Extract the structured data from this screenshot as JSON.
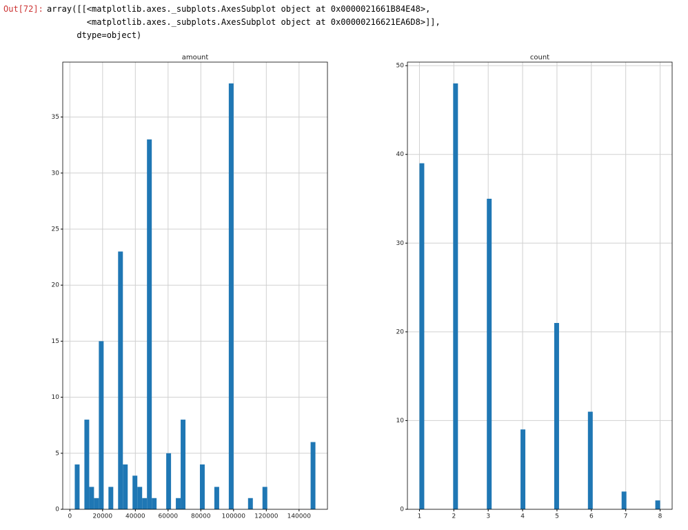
{
  "output": {
    "prompt": "Out[72]:",
    "lines": [
      "array([[<matplotlib.axes._subplots.AxesSubplot object at 0x0000021661B84E48>,",
      "        <matplotlib.axes._subplots.AxesSubplot object at 0x00000216621EA6D8>]],",
      "      dtype=object)"
    ]
  },
  "chart_data": [
    {
      "type": "histogram",
      "title": "amount",
      "color": "#1f77b4",
      "grid": true,
      "bins": [
        3000,
        5940,
        8880,
        11820,
        14760,
        17700,
        20640,
        23580,
        26520,
        29460,
        32400,
        35340,
        38280,
        41220,
        44160,
        47100,
        50040,
        52980,
        55920,
        58860,
        61800,
        64740,
        67680,
        70620,
        73560,
        76500,
        79440,
        82380,
        85320,
        88260,
        91200,
        94140,
        97080,
        100020,
        102960,
        105900,
        108840,
        111780,
        114720,
        117660,
        120600,
        123540,
        126480,
        129420,
        132360,
        135300,
        138240,
        141180,
        144120,
        147060,
        150000
      ],
      "values": [
        4,
        0,
        8,
        2,
        1,
        15,
        0,
        2,
        0,
        23,
        4,
        0,
        3,
        2,
        1,
        33,
        1,
        0,
        0,
        5,
        0,
        1,
        8,
        0,
        0,
        0,
        4,
        0,
        0,
        2,
        0,
        0,
        38,
        0,
        0,
        0,
        1,
        0,
        0,
        2,
        0,
        0,
        0,
        0,
        0,
        0,
        0,
        0,
        0,
        6
      ],
      "xlim": [
        -4350,
        157350
      ],
      "xticks": [
        0,
        20000,
        40000,
        60000,
        80000,
        100000,
        120000,
        140000
      ],
      "ylim": [
        0,
        39.9
      ],
      "yticks": [
        0,
        5,
        10,
        15,
        20,
        25,
        30,
        35
      ]
    },
    {
      "type": "histogram",
      "title": "count",
      "color": "#1f77b4",
      "grid": true,
      "bins": [
        1,
        1.14,
        1.28,
        1.42,
        1.56,
        1.7,
        1.84,
        1.98,
        2.12,
        2.26,
        2.4,
        2.54,
        2.68,
        2.82,
        2.96,
        3.1,
        3.24,
        3.38,
        3.52,
        3.66,
        3.8,
        3.94,
        4.08,
        4.22,
        4.36,
        4.5,
        4.64,
        4.78,
        4.92,
        5.06,
        5.2,
        5.34,
        5.48,
        5.62,
        5.76,
        5.9,
        6.04,
        6.18,
        6.32,
        6.46,
        6.6,
        6.74,
        6.88,
        7.02,
        7.16,
        7.3,
        7.44,
        7.58,
        7.72,
        7.86,
        8
      ],
      "values": [
        39,
        0,
        0,
        0,
        0,
        0,
        0,
        48,
        0,
        0,
        0,
        0,
        0,
        0,
        35,
        0,
        0,
        0,
        0,
        0,
        0,
        9,
        0,
        0,
        0,
        0,
        0,
        0,
        21,
        0,
        0,
        0,
        0,
        0,
        0,
        11,
        0,
        0,
        0,
        0,
        0,
        0,
        2,
        0,
        0,
        0,
        0,
        0,
        0,
        1
      ],
      "xlim": [
        0.65,
        8.35
      ],
      "xticks": [
        1,
        2,
        3,
        4,
        5,
        6,
        7,
        8
      ],
      "ylim": [
        0,
        50.4
      ],
      "yticks": [
        0,
        10,
        20,
        30,
        40,
        50
      ]
    }
  ]
}
